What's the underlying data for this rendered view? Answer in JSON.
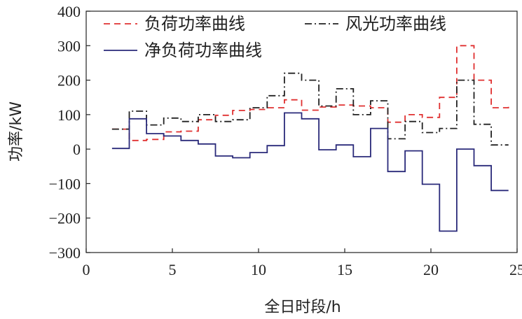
{
  "chart_data": {
    "type": "line",
    "step": true,
    "xlabel": "全日时段/h",
    "ylabel": "功率/kW",
    "xlim": [
      0,
      25
    ],
    "ylim": [
      -300,
      400
    ],
    "xticks": [
      0,
      5,
      10,
      15,
      20,
      25
    ],
    "yticks": [
      -300,
      -200,
      -100,
      0,
      100,
      200,
      300,
      400
    ],
    "grid": false,
    "legend_position": "top",
    "x_edges": [
      1.5,
      2.5,
      3.5,
      4.5,
      5.5,
      6.5,
      7.5,
      8.5,
      9.5,
      10.5,
      11.5,
      12.5,
      13.5,
      14.5,
      15.5,
      16.5,
      17.5,
      18.5,
      19.5,
      20.5,
      21.5,
      22.5,
      23.5,
      24.5
    ],
    "series": [
      {
        "name": "负荷功率曲线",
        "color": "#e03030",
        "style": "dashed",
        "values": [
          58,
          25,
          28,
          50,
          52,
          85,
          98,
          112,
          115,
          120,
          143,
          113,
          122,
          128,
          125,
          120,
          78,
          100,
          92,
          150,
          300,
          200,
          120,
          130
        ]
      },
      {
        "name": "风光功率曲线",
        "color": "#222222",
        "style": "dashdot",
        "values": [
          58,
          110,
          70,
          90,
          80,
          100,
          80,
          85,
          120,
          155,
          220,
          200,
          125,
          175,
          100,
          140,
          30,
          80,
          48,
          60,
          200,
          72,
          12,
          12
        ]
      },
      {
        "name": "净负荷功率曲线",
        "color": "#2a2a7a",
        "style": "solid",
        "values": [
          2,
          88,
          45,
          38,
          25,
          15,
          -20,
          -25,
          -10,
          10,
          105,
          88,
          -2,
          12,
          -22,
          60,
          -65,
          -5,
          -102,
          -238,
          0,
          -48,
          -120,
          -120
        ]
      }
    ]
  }
}
